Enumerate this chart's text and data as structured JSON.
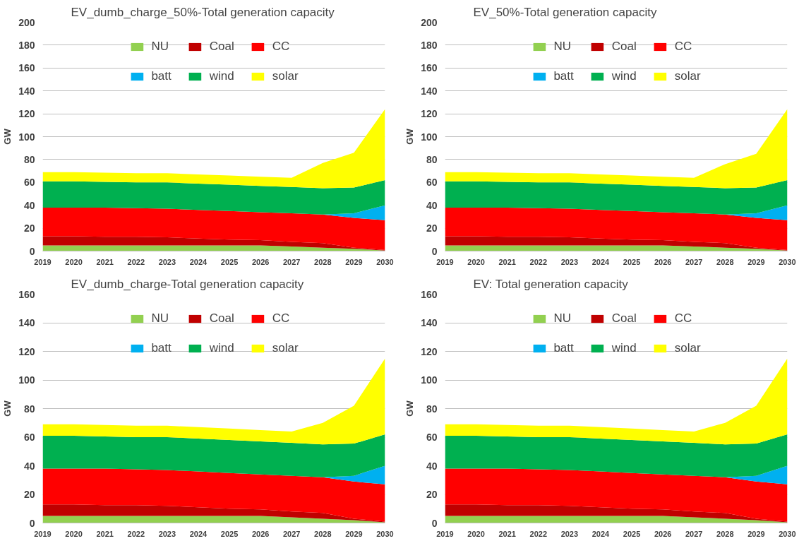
{
  "chart_data": [
    {
      "type": "area",
      "stacked": true,
      "title": "EV_dumb_charge_50%-Total generation capacity",
      "ylabel": "GW",
      "categories": [
        "2019",
        "2020",
        "2021",
        "2022",
        "2023",
        "2024",
        "2025",
        "2026",
        "2027",
        "2028",
        "2029",
        "2030"
      ],
      "ylim": [
        0,
        200
      ],
      "yticks": [
        0,
        20,
        40,
        60,
        80,
        100,
        120,
        140,
        160,
        180,
        200
      ],
      "grid": "y",
      "legend": "top",
      "series": [
        {
          "name": "NU",
          "color": "#92d050",
          "values": [
            5,
            5,
            5,
            5,
            5,
            5,
            5,
            5,
            4,
            3,
            2,
            0.5
          ]
        },
        {
          "name": "Coal",
          "color": "#c00000",
          "values": [
            8,
            8,
            7.5,
            7.5,
            7,
            6,
            5,
            4.5,
            4,
            4,
            1,
            0.5
          ]
        },
        {
          "name": "CC",
          "color": "#ff0000",
          "values": [
            25,
            25,
            25.5,
            25,
            25,
            25,
            25,
            24.5,
            25,
            25,
            26,
            26
          ]
        },
        {
          "name": "batt",
          "color": "#00b0f0",
          "values": [
            0,
            0,
            0,
            0,
            0,
            0,
            0,
            0,
            0,
            0,
            4,
            13
          ]
        },
        {
          "name": "wind",
          "color": "#00b050",
          "values": [
            23,
            23,
            22.5,
            22.5,
            23,
            23,
            23,
            23,
            23,
            23,
            22.5,
            22
          ]
        },
        {
          "name": "solar",
          "color": "#ffff00",
          "values": [
            8,
            8,
            8,
            8,
            8,
            8,
            8,
            8,
            8,
            22,
            30.5,
            62
          ]
        }
      ]
    },
    {
      "type": "area",
      "stacked": true,
      "title": "EV_50%-Total generation capacity",
      "ylabel": "GW",
      "categories": [
        "2019",
        "2020",
        "2021",
        "2022",
        "2023",
        "2024",
        "2025",
        "2026",
        "2027",
        "2028",
        "2029",
        "2030"
      ],
      "ylim": [
        0,
        200
      ],
      "yticks": [
        0,
        20,
        40,
        60,
        80,
        100,
        120,
        140,
        160,
        180,
        200
      ],
      "grid": "y",
      "legend": "top",
      "series": [
        {
          "name": "NU",
          "color": "#92d050",
          "values": [
            5,
            5,
            5,
            5,
            5,
            5,
            5,
            5,
            4,
            3,
            2,
            0.5
          ]
        },
        {
          "name": "Coal",
          "color": "#c00000",
          "values": [
            8,
            8,
            7.5,
            7.5,
            7,
            6,
            5,
            4.5,
            4,
            4,
            1,
            0.5
          ]
        },
        {
          "name": "CC",
          "color": "#ff0000",
          "values": [
            25,
            25,
            25.5,
            25,
            25,
            25,
            25,
            24.5,
            25,
            25,
            26,
            26
          ]
        },
        {
          "name": "batt",
          "color": "#00b0f0",
          "values": [
            0,
            0,
            0,
            0,
            0,
            0,
            0,
            0,
            0,
            0,
            4,
            13
          ]
        },
        {
          "name": "wind",
          "color": "#00b050",
          "values": [
            23,
            23,
            22.5,
            22.5,
            23,
            23,
            23,
            23,
            23,
            23,
            22.5,
            22
          ]
        },
        {
          "name": "solar",
          "color": "#ffff00",
          "values": [
            8,
            8,
            8,
            8,
            8,
            8,
            8,
            8,
            8,
            21,
            29.5,
            62
          ]
        }
      ]
    },
    {
      "type": "area",
      "stacked": true,
      "title": "EV_dumb_charge-Total generation capacity",
      "ylabel": "GW",
      "categories": [
        "2019",
        "2020",
        "2021",
        "2022",
        "2023",
        "2024",
        "2025",
        "2026",
        "2027",
        "2028",
        "2029",
        "2030"
      ],
      "ylim": [
        0,
        160
      ],
      "yticks": [
        0,
        20,
        40,
        60,
        80,
        100,
        120,
        140,
        160
      ],
      "grid": "y",
      "legend": "top",
      "series": [
        {
          "name": "NU",
          "color": "#92d050",
          "values": [
            5,
            5,
            5,
            5,
            5,
            5,
            5,
            5,
            4,
            3,
            2,
            0.5
          ]
        },
        {
          "name": "Coal",
          "color": "#c00000",
          "values": [
            8,
            8,
            7.5,
            7.5,
            7,
            6,
            5,
            4.5,
            4,
            4,
            1,
            0.5
          ]
        },
        {
          "name": "CC",
          "color": "#ff0000",
          "values": [
            25,
            25,
            25.5,
            25,
            25,
            25,
            25,
            24.5,
            25,
            25,
            26,
            26
          ]
        },
        {
          "name": "batt",
          "color": "#00b0f0",
          "values": [
            0,
            0,
            0,
            0,
            0,
            0,
            0,
            0,
            0,
            0,
            4,
            13
          ]
        },
        {
          "name": "wind",
          "color": "#00b050",
          "values": [
            23,
            23,
            22.5,
            22.5,
            23,
            23,
            23,
            23,
            23,
            23,
            22.5,
            22
          ]
        },
        {
          "name": "solar",
          "color": "#ffff00",
          "values": [
            8,
            8,
            8,
            8,
            8,
            8,
            8,
            8,
            8,
            15,
            26.5,
            53
          ]
        }
      ]
    },
    {
      "type": "area",
      "stacked": true,
      "title": "EV: Total generation capacity",
      "ylabel": "GW",
      "categories": [
        "2019",
        "2020",
        "2021",
        "2022",
        "2023",
        "2024",
        "2025",
        "2026",
        "2027",
        "2028",
        "2029",
        "2030"
      ],
      "ylim": [
        0,
        160
      ],
      "yticks": [
        0,
        20,
        40,
        60,
        80,
        100,
        120,
        140,
        160
      ],
      "grid": "y",
      "legend": "top",
      "series": [
        {
          "name": "NU",
          "color": "#92d050",
          "values": [
            5,
            5,
            5,
            5,
            5,
            5,
            5,
            5,
            4,
            3,
            2,
            0.5
          ]
        },
        {
          "name": "Coal",
          "color": "#c00000",
          "values": [
            8,
            8,
            7.5,
            7.5,
            7,
            6,
            5,
            4.5,
            4,
            4,
            1,
            0.5
          ]
        },
        {
          "name": "CC",
          "color": "#ff0000",
          "values": [
            25,
            25,
            25.5,
            25,
            25,
            25,
            25,
            24.5,
            25,
            25,
            26,
            26
          ]
        },
        {
          "name": "batt",
          "color": "#00b0f0",
          "values": [
            0,
            0,
            0,
            0,
            0,
            0,
            0,
            0,
            0,
            0,
            4,
            13
          ]
        },
        {
          "name": "wind",
          "color": "#00b050",
          "values": [
            23,
            23,
            22.5,
            22.5,
            23,
            23,
            23,
            23,
            23,
            23,
            22.5,
            22
          ]
        },
        {
          "name": "solar",
          "color": "#ffff00",
          "values": [
            8,
            8,
            8,
            8,
            8,
            8,
            8,
            8,
            8,
            15,
            26.5,
            53
          ]
        }
      ]
    }
  ]
}
